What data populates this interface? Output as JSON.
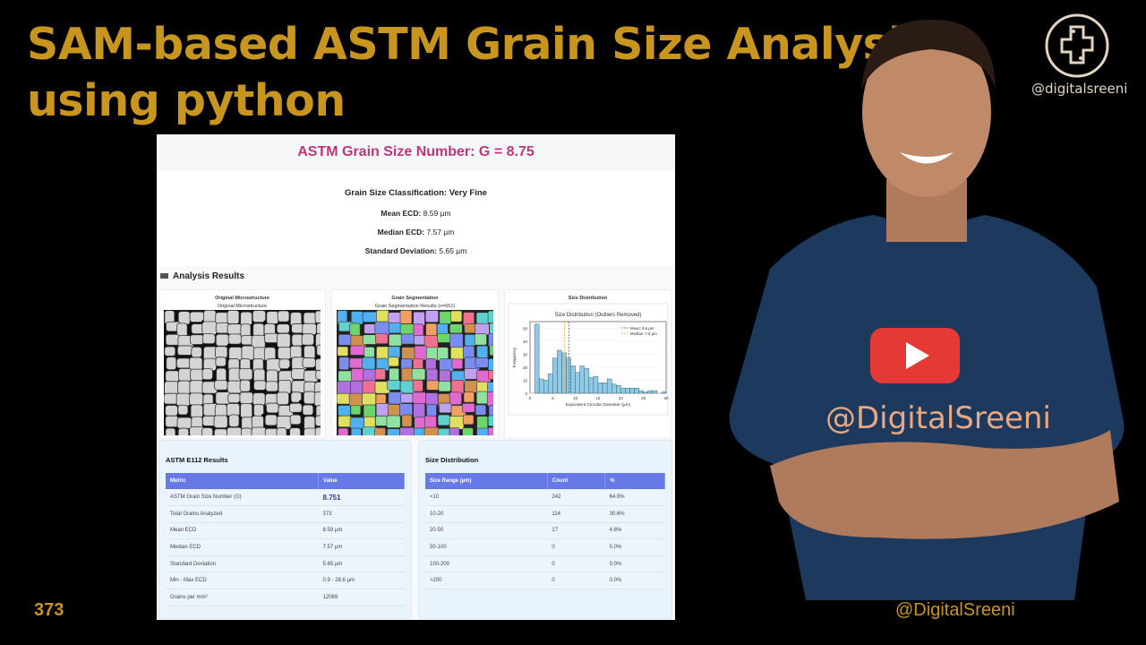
{
  "thumbnail": {
    "title_line1": "SAM-based ASTM Grain Size Analysis",
    "title_line2": "using python",
    "episode": "373",
    "handle": "@DigitalSreeni",
    "logo_text": "@digitalsreeni",
    "shirt_text": "@DigitalSreeni",
    "accent": "#c8961e"
  },
  "app": {
    "header": "ASTM Grain Size Number: G = 8.75",
    "classification": "Grain Size Classification: Very Fine",
    "stats": [
      {
        "label": "Mean ECD:",
        "value": "8.59 µm"
      },
      {
        "label": "Median ECD:",
        "value": "7.57 µm"
      },
      {
        "label": "Standard Deviation:",
        "value": "5.65 µm"
      }
    ],
    "section_title": "Analysis Results",
    "cards": [
      {
        "title": "Original Microstructure",
        "subtitle": "Original Microstructure"
      },
      {
        "title": "Grain Segmentation",
        "subtitle": "Grain Segmentation Results (n=651)"
      },
      {
        "title": "Size Distribution",
        "subtitle": ""
      }
    ],
    "astm": {
      "title": "ASTM E112 Results",
      "headers": [
        "Metric",
        "Value"
      ],
      "rows": [
        [
          "ASTM Grain Size Number (G)",
          "8.751"
        ],
        [
          "Total Grains Analyzed",
          "373"
        ],
        [
          "Mean ECD",
          "8.59 µm"
        ],
        [
          "Median ECD",
          "7.57 µm"
        ],
        [
          "Standard Deviation",
          "5.65 µm"
        ],
        [
          "Min - Max ECD",
          "0.9 - 28.6 µm"
        ],
        [
          "Grains per mm²",
          "12069"
        ]
      ]
    },
    "dist": {
      "title": "Size Distribution",
      "headers": [
        "Size Range (µm)",
        "Count",
        "%"
      ],
      "rows": [
        [
          "<10",
          "242",
          "64.9%"
        ],
        [
          "10-20",
          "114",
          "30.6%"
        ],
        [
          "20-50",
          "17",
          "4.6%"
        ],
        [
          "50-100",
          "0",
          "0.0%"
        ],
        [
          "100-200",
          "0",
          "0.0%"
        ],
        [
          ">200",
          "0",
          "0.0%"
        ]
      ]
    }
  },
  "chart_data": {
    "type": "bar",
    "title": "Size Distribution (Outliers Removed)",
    "xlabel": "Equivalent Circular Diameter (µm)",
    "ylabel": "Frequency",
    "xlim": [
      0,
      30
    ],
    "ylim": [
      0,
      55
    ],
    "xticks": [
      "0",
      "5",
      "10",
      "15",
      "20",
      "25",
      "30"
    ],
    "yticks": [
      "0",
      "10",
      "20",
      "30",
      "40",
      "50"
    ],
    "bin_start": 1,
    "bin_width": 1,
    "values": [
      53,
      11,
      10,
      15,
      27,
      33,
      31,
      27,
      21,
      16,
      21,
      19,
      12,
      13,
      8,
      8,
      11,
      7,
      6,
      4,
      4,
      4,
      4,
      2,
      1,
      2,
      2,
      0,
      1
    ],
    "lines": [
      {
        "name": "Mean: 8.6 µm",
        "x": 8.6,
        "color": "#c0306a"
      },
      {
        "name": "Median: 7.6 µm",
        "x": 7.6,
        "color": "#e8a53a"
      }
    ],
    "bar_color": "#8fcbe6",
    "legend": "top-right",
    "grid": true
  }
}
